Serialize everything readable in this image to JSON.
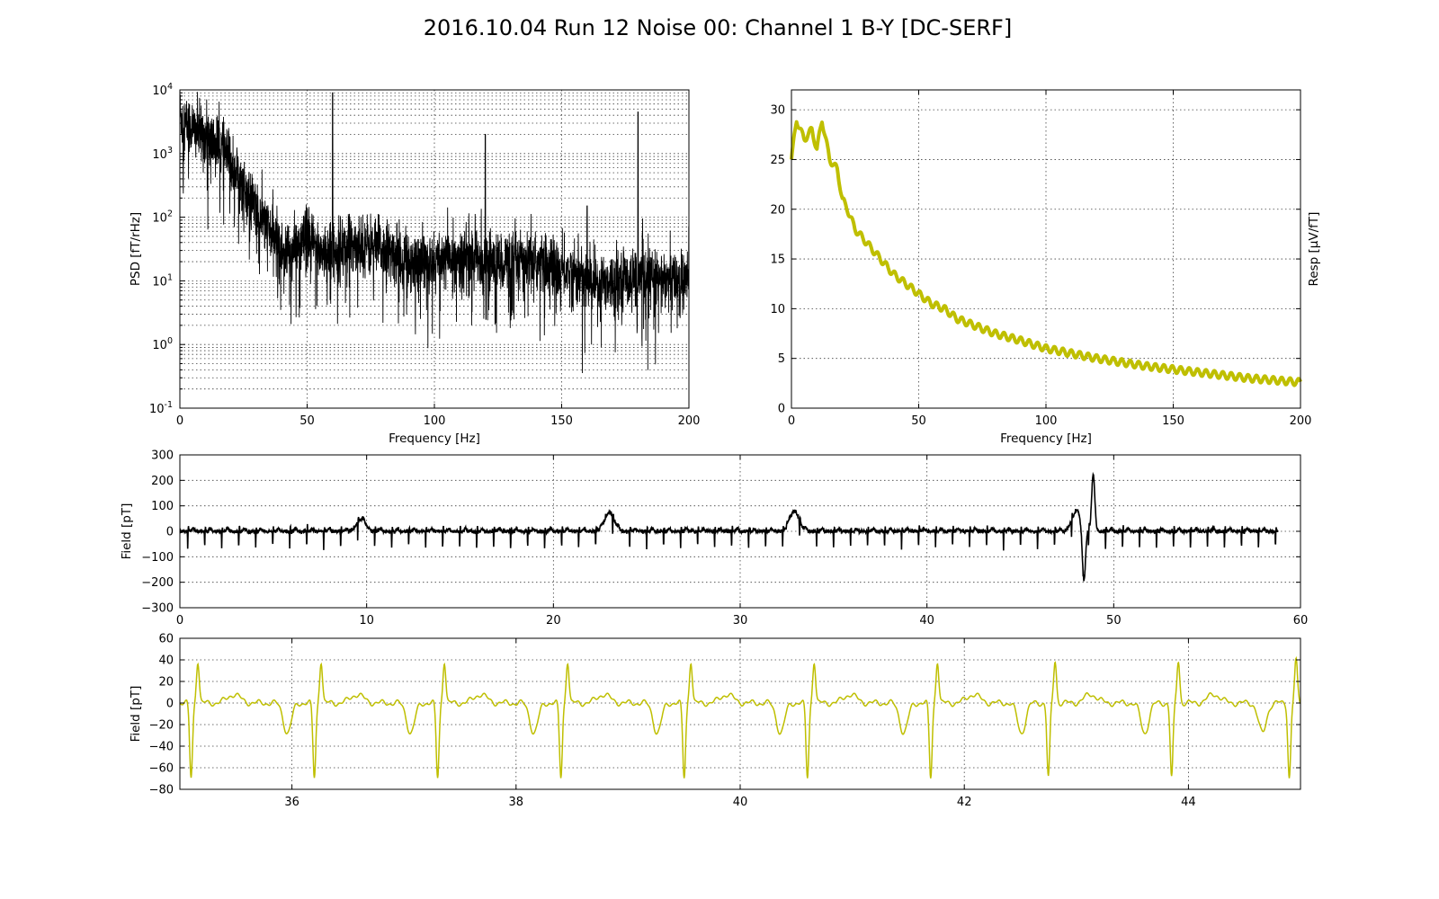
{
  "figure": {
    "title": "2016.10.04 Run 12 Noise 00: Channel 1 B-Y [DC-SERF]"
  },
  "colors": {
    "psd_line": "#000000",
    "response_line": "#bfbf00",
    "field_full_line": "#000000",
    "field_zoom_line": "#bfbf00"
  },
  "chart_data": [
    {
      "id": "psd",
      "type": "line",
      "title": "",
      "xlabel": "Frequency [Hz]",
      "ylabel": "PSD [fT/rHz]",
      "xlim": [
        0,
        200
      ],
      "ylim": [
        0.1,
        10000
      ],
      "yscale": "log",
      "grid": true,
      "grid_minor": true,
      "xticks": [
        0,
        50,
        100,
        150,
        200
      ],
      "yticks": [
        0.1,
        1,
        10,
        100,
        1000,
        10000
      ],
      "ytick_labels": [
        [
          "10",
          "-1"
        ],
        [
          "10",
          "0"
        ],
        [
          "10",
          "1"
        ],
        [
          "10",
          "2"
        ],
        [
          "10",
          "3"
        ],
        [
          "10",
          "4"
        ]
      ],
      "series": [
        {
          "x": [
            0,
            2,
            5,
            8,
            12,
            16,
            20,
            25,
            30,
            35,
            40,
            45,
            50,
            55,
            60,
            65,
            70,
            80,
            90,
            100,
            110,
            120,
            130,
            140,
            150,
            160,
            170,
            180,
            190,
            200
          ],
          "y": [
            4000,
            3000,
            2500,
            2000,
            1600,
            1200,
            700,
            250,
            120,
            60,
            30,
            30,
            45,
            30,
            30,
            35,
            40,
            30,
            20,
            20,
            25,
            20,
            20,
            20,
            15,
            10,
            10,
            12,
            10,
            10
          ]
        }
      ],
      "peaks": [
        {
          "x": 60,
          "y": 9000
        },
        {
          "x": 120,
          "y": 2000
        },
        {
          "x": 160,
          "y": 150
        },
        {
          "x": 180,
          "y": 4500
        }
      ]
    },
    {
      "id": "response",
      "type": "line",
      "title": "",
      "xlabel": "Frequency [Hz]",
      "ylabel": "Resp [μV/fT]",
      "ylabel_position": "right",
      "xlim": [
        0,
        200
      ],
      "ylim": [
        0,
        32
      ],
      "grid": true,
      "xticks": [
        0,
        50,
        100,
        150,
        200
      ],
      "yticks": [
        0,
        5,
        10,
        15,
        20,
        25,
        30
      ],
      "series": [
        {
          "x": [
            0,
            2,
            5,
            8,
            10,
            12,
            15,
            18,
            20,
            22,
            25,
            30,
            35,
            40,
            45,
            50,
            55,
            60,
            65,
            70,
            80,
            90,
            100,
            110,
            120,
            130,
            140,
            150,
            160,
            170,
            180,
            190,
            200
          ],
          "y": [
            25,
            29,
            27,
            28,
            26,
            29,
            25,
            24,
            21,
            20,
            18,
            16.5,
            15,
            13.5,
            12.5,
            11.5,
            10.5,
            10,
            9,
            8.5,
            7.5,
            6.8,
            6,
            5.5,
            5,
            4.6,
            4.2,
            3.9,
            3.6,
            3.3,
            3,
            2.8,
            2.6
          ]
        }
      ]
    },
    {
      "id": "field_full",
      "type": "line",
      "title": "",
      "xlabel": "",
      "ylabel": "Field [pT]",
      "xlim": [
        0,
        60
      ],
      "ylim": [
        -300,
        300
      ],
      "grid": true,
      "xticks": [
        0,
        10,
        20,
        30,
        40,
        50,
        60
      ],
      "yticks": [
        -300,
        -200,
        -100,
        0,
        100,
        200,
        300
      ],
      "beat_period_s": 0.91,
      "beat_amplitude": {
        "r_peak": 20,
        "s_dip": -70
      },
      "x_end": 58.8,
      "events": [
        {
          "x": 9.7,
          "y": 45
        },
        {
          "x": 23.0,
          "y": 75
        },
        {
          "x": 32.9,
          "y": 80
        },
        {
          "x": 48.0,
          "y": 75
        },
        {
          "x": 48.4,
          "y": -210
        },
        {
          "x": 48.9,
          "y": 215
        }
      ]
    },
    {
      "id": "field_zoom",
      "type": "line",
      "title": "",
      "xlabel": "",
      "ylabel": "Field [pT]",
      "xlim": [
        35,
        45
      ],
      "ylim": [
        -80,
        60
      ],
      "grid": true,
      "xticks": [
        36,
        38,
        40,
        42,
        44
      ],
      "yticks": [
        -80,
        -60,
        -40,
        -20,
        0,
        20,
        40,
        60
      ],
      "beats": [
        35.1,
        36.2,
        37.3,
        38.4,
        39.5,
        40.6,
        41.7,
        42.75,
        43.85,
        44.9
      ],
      "beat_shape": {
        "r_peak": 39,
        "s_dip": -69,
        "t_wave": 8,
        "q_dip": -28
      }
    }
  ]
}
